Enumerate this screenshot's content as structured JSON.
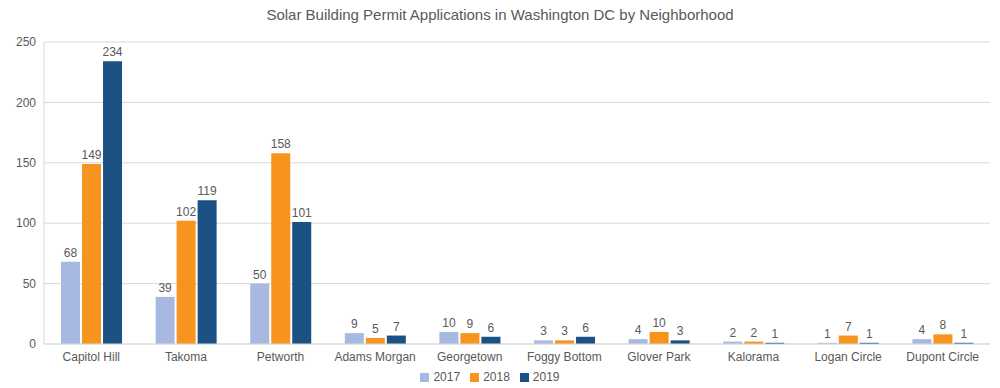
{
  "chart_data": {
    "type": "bar",
    "title": "Solar Building Permit Applications in Washington DC by Neighborhood",
    "categories": [
      "Capitol Hill",
      "Takoma",
      "Petworth",
      "Adams Morgan",
      "Georgetown",
      "Foggy Bottom",
      "Glover Park",
      "Kalorama",
      "Logan Circle",
      "Dupont Circle"
    ],
    "series": [
      {
        "name": "2017",
        "color": "#a7b9e1",
        "values": [
          68,
          39,
          50,
          9,
          10,
          3,
          4,
          2,
          1,
          4
        ]
      },
      {
        "name": "2018",
        "color": "#f7941d",
        "values": [
          149,
          102,
          158,
          5,
          9,
          3,
          10,
          2,
          7,
          8
        ]
      },
      {
        "name": "2019",
        "color": "#1b5283",
        "values": [
          234,
          119,
          101,
          7,
          6,
          6,
          3,
          1,
          1,
          1
        ]
      }
    ],
    "ylim": [
      0,
      250
    ],
    "yticks": [
      0,
      50,
      100,
      150,
      200,
      250
    ],
    "grid": true,
    "legend": "bottom",
    "data_labels": true
  }
}
